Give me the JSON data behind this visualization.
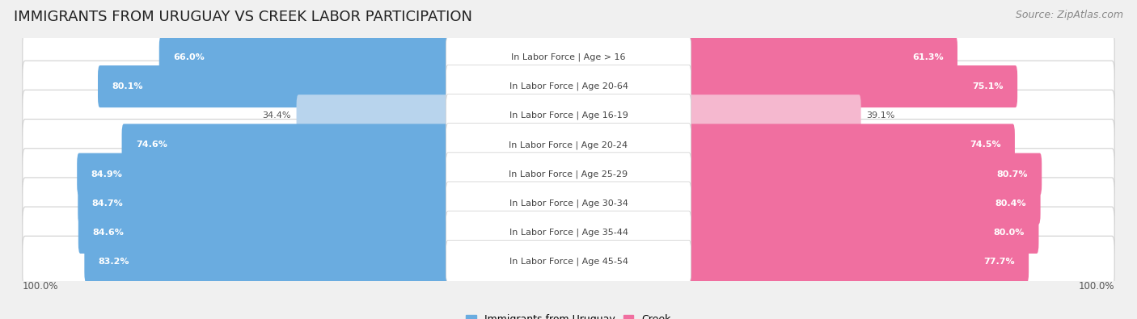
{
  "title": "IMMIGRANTS FROM URUGUAY VS CREEK LABOR PARTICIPATION",
  "source": "Source: ZipAtlas.com",
  "categories": [
    "In Labor Force | Age > 16",
    "In Labor Force | Age 20-64",
    "In Labor Force | Age 16-19",
    "In Labor Force | Age 20-24",
    "In Labor Force | Age 25-29",
    "In Labor Force | Age 30-34",
    "In Labor Force | Age 35-44",
    "In Labor Force | Age 45-54"
  ],
  "uruguay_values": [
    66.0,
    80.1,
    34.4,
    74.6,
    84.9,
    84.7,
    84.6,
    83.2
  ],
  "creek_values": [
    61.3,
    75.1,
    39.1,
    74.5,
    80.7,
    80.4,
    80.0,
    77.7
  ],
  "uruguay_color": "#6aace0",
  "uruguay_color_light": "#b8d4ed",
  "creek_color": "#f06fa0",
  "creek_color_light": "#f5b8cf",
  "row_bg_color": "#e8e8e8",
  "bg_color": "#f0f0f0",
  "title_fontsize": 13,
  "source_fontsize": 9,
  "label_fontsize": 8,
  "value_fontsize": 8,
  "legend_fontsize": 9,
  "axis_label_fontsize": 8.5,
  "max_val": 100.0
}
